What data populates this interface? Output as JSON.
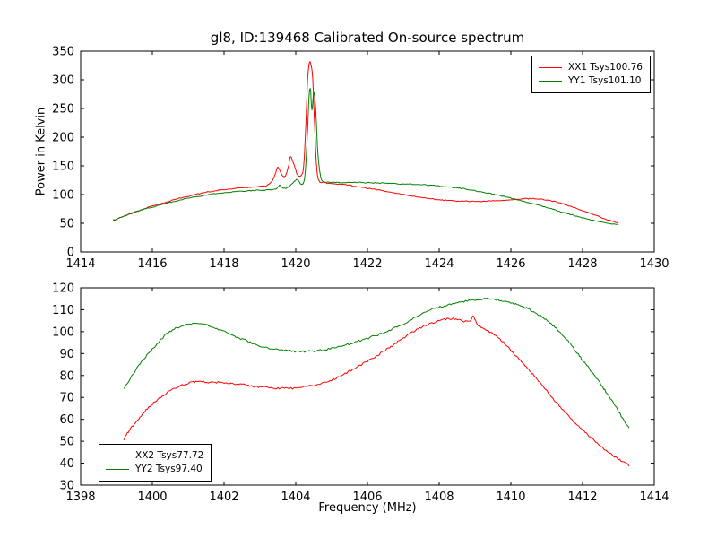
{
  "chart_data": [
    {
      "type": "line",
      "title": "gl8, ID:139468 Calibrated On-source spectrum",
      "xlabel": "",
      "ylabel": "Power in Kelvin",
      "xlim": [
        1414,
        1430
      ],
      "ylim": [
        0,
        350
      ],
      "xticks": [
        1414,
        1416,
        1418,
        1420,
        1422,
        1424,
        1426,
        1428,
        1430
      ],
      "yticks": [
        0,
        50,
        100,
        150,
        200,
        250,
        300,
        350
      ],
      "grid": false,
      "legend_position": "upper right",
      "series": [
        {
          "name": "XX1 Tsys100.76",
          "color": "#ff0000",
          "noise": 0.8,
          "x": [
            1414.9,
            1415.2,
            1415.6,
            1416.0,
            1416.5,
            1417.0,
            1417.5,
            1418.0,
            1418.5,
            1419.0,
            1419.2,
            1419.35,
            1419.45,
            1419.5,
            1419.6,
            1419.7,
            1419.8,
            1419.85,
            1419.95,
            1420.05,
            1420.15,
            1420.22,
            1420.28,
            1420.33,
            1420.38,
            1420.42,
            1420.47,
            1420.52,
            1420.58,
            1420.65,
            1420.8,
            1421.0,
            1421.4,
            1421.8,
            1422.2,
            1422.6,
            1423.0,
            1423.5,
            1424.0,
            1424.5,
            1425.0,
            1425.5,
            1426.0,
            1426.4,
            1426.8,
            1427.2,
            1427.6,
            1428.0,
            1428.4,
            1428.7,
            1429.0
          ],
          "y": [
            55,
            62,
            71,
            80,
            89,
            97,
            104,
            109,
            112,
            114,
            116,
            125,
            140,
            148,
            136,
            132,
            150,
            166,
            152,
            134,
            133,
            150,
            220,
            300,
            330,
            327,
            305,
            230,
            150,
            124,
            121,
            119,
            117,
            113,
            109,
            105,
            100,
            95,
            91,
            89,
            88,
            89,
            91,
            93,
            92,
            88,
            81,
            72,
            63,
            56,
            50
          ]
        },
        {
          "name": "YY1 Tsys101.10",
          "color": "#008000",
          "noise": 0.8,
          "x": [
            1414.9,
            1415.3,
            1415.8,
            1416.3,
            1416.8,
            1417.3,
            1417.8,
            1418.3,
            1418.8,
            1419.2,
            1419.45,
            1419.55,
            1419.65,
            1419.8,
            1419.95,
            1420.05,
            1420.15,
            1420.25,
            1420.32,
            1420.37,
            1420.41,
            1420.45,
            1420.5,
            1420.55,
            1420.62,
            1420.72,
            1420.9,
            1421.3,
            1421.8,
            1422.3,
            1422.8,
            1423.3,
            1423.8,
            1424.3,
            1424.8,
            1425.3,
            1425.8,
            1426.3,
            1426.8,
            1427.3,
            1427.8,
            1428.3,
            1428.7,
            1429.0
          ],
          "y": [
            54,
            65,
            75,
            83,
            91,
            97,
            102,
            105,
            107,
            108,
            110,
            116,
            111,
            113,
            122,
            126,
            118,
            130,
            200,
            270,
            283,
            248,
            277,
            255,
            170,
            126,
            122,
            121,
            121,
            120,
            119,
            118,
            116,
            113,
            109,
            103,
            97,
            89,
            81,
            72,
            63,
            55,
            50,
            47
          ]
        }
      ]
    },
    {
      "type": "line",
      "title": "",
      "xlabel": "Frequency (MHz)",
      "ylabel": "",
      "xlim": [
        1398,
        1414
      ],
      "ylim": [
        30,
        120
      ],
      "xticks": [
        1398,
        1400,
        1402,
        1404,
        1406,
        1408,
        1410,
        1412,
        1414
      ],
      "yticks": [
        30,
        40,
        50,
        60,
        70,
        80,
        90,
        100,
        110,
        120
      ],
      "grid": false,
      "legend_position": "lower left",
      "series": [
        {
          "name": "XX2 Tsys77.72",
          "color": "#ff0000",
          "noise": 0.45,
          "x": [
            1399.2,
            1399.5,
            1400.0,
            1400.5,
            1401.0,
            1401.3,
            1401.7,
            1402.1,
            1402.5,
            1403.0,
            1403.5,
            1404.0,
            1404.5,
            1405.0,
            1405.5,
            1406.0,
            1406.5,
            1407.0,
            1407.5,
            1408.0,
            1408.3,
            1408.6,
            1408.85,
            1408.95,
            1409.1,
            1409.4,
            1409.7,
            1410.0,
            1410.4,
            1410.8,
            1411.2,
            1411.6,
            1412.0,
            1412.4,
            1412.8,
            1413.1,
            1413.3
          ],
          "y": [
            51,
            58,
            67,
            73,
            76.5,
            77,
            77,
            76.5,
            75.8,
            74.8,
            74.2,
            74.3,
            75.5,
            78,
            82,
            86.5,
            91.5,
            97,
            102,
            105,
            106,
            105.2,
            104.5,
            107,
            103,
            100,
            96.5,
            91.5,
            84.5,
            77,
            69,
            61.5,
            55,
            49.5,
            44,
            41,
            39
          ]
        },
        {
          "name": "YY2 Tsys97.40",
          "color": "#008000",
          "noise": 0.45,
          "x": [
            1399.2,
            1399.6,
            1400.0,
            1400.4,
            1400.8,
            1401.1,
            1401.4,
            1401.8,
            1402.2,
            1402.6,
            1403.0,
            1403.4,
            1403.8,
            1404.2,
            1404.6,
            1405.0,
            1405.4,
            1405.8,
            1406.2,
            1406.6,
            1407.0,
            1407.4,
            1407.8,
            1408.2,
            1408.6,
            1409.0,
            1409.3,
            1409.6,
            1410.0,
            1410.4,
            1410.8,
            1411.2,
            1411.6,
            1412.0,
            1412.4,
            1412.8,
            1413.1,
            1413.3
          ],
          "y": [
            74,
            84,
            92,
            99,
            102.5,
            103.8,
            103.5,
            101.5,
            98.5,
            96,
            93.5,
            92,
            91.2,
            91,
            91.3,
            92.3,
            94,
            96,
            98,
            100.5,
            103.5,
            107,
            110,
            112,
            113.5,
            114.5,
            115,
            114.5,
            113,
            111,
            107.5,
            102.5,
            95.5,
            87,
            78.5,
            69,
            61,
            56
          ]
        }
      ]
    }
  ]
}
